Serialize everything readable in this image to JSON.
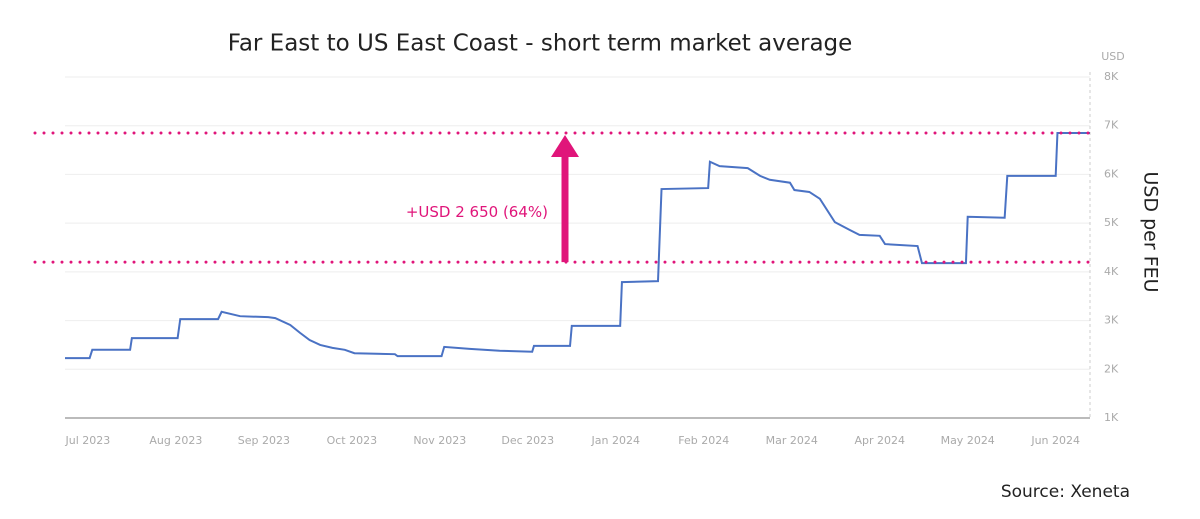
{
  "chart_data": {
    "type": "line",
    "title": "Far East to US East Coast - short term market average",
    "y_unit": "USD",
    "y_axis_label": "USD per FEU",
    "source": "Source: Xeneta",
    "annotation": "+USD 2 650 (64%)",
    "reference_lines": [
      {
        "value": 6850
      },
      {
        "value": 4200
      }
    ],
    "reference_color": "#e0157a",
    "grid": true,
    "xlim": [
      -0.26,
      11.39
    ],
    "xticks": [
      {
        "value": 0,
        "label": "Jul 2023"
      },
      {
        "value": 1,
        "label": "Aug 2023"
      },
      {
        "value": 2,
        "label": "Sep 2023"
      },
      {
        "value": 3,
        "label": "Oct 2023"
      },
      {
        "value": 4,
        "label": "Nov 2023"
      },
      {
        "value": 5,
        "label": "Dec 2023"
      },
      {
        "value": 6,
        "label": "Jan 2024"
      },
      {
        "value": 7,
        "label": "Feb 2024"
      },
      {
        "value": 8,
        "label": "Mar 2024"
      },
      {
        "value": 9,
        "label": "Apr 2024"
      },
      {
        "value": 10,
        "label": "May 2024"
      },
      {
        "value": 11,
        "label": "Jun 2024"
      }
    ],
    "ylim": [
      1000,
      8000
    ],
    "yticks": [
      {
        "value": 1000,
        "label": "1K"
      },
      {
        "value": 2000,
        "label": "2K"
      },
      {
        "value": 3000,
        "label": "3K"
      },
      {
        "value": 4000,
        "label": "4K"
      },
      {
        "value": 5000,
        "label": "5K"
      },
      {
        "value": 6000,
        "label": "6K"
      },
      {
        "value": 7000,
        "label": "7K"
      },
      {
        "value": 8000,
        "label": "8K"
      }
    ],
    "x": [
      -0.26,
      0.02,
      0.05,
      0.48,
      0.5,
      1.02,
      1.05,
      1.48,
      1.52,
      1.73,
      2.05,
      2.13,
      2.3,
      2.41,
      2.52,
      2.64,
      2.78,
      2.92,
      3.03,
      3.49,
      3.52,
      4.02,
      4.05,
      4.34,
      4.68,
      5.05,
      5.07,
      5.48,
      5.5,
      6.05,
      6.07,
      6.48,
      6.52,
      7.05,
      7.07,
      7.18,
      7.5,
      7.64,
      7.75,
      7.98,
      8.03,
      8.2,
      8.32,
      8.49,
      8.66,
      8.77,
      9,
      9.06,
      9.43,
      9.48,
      9.98,
      10,
      10.42,
      10.45,
      11,
      11.02,
      11.39
    ],
    "series": [
      {
        "color": "#4a72c4",
        "values": [
          2230,
          2230,
          2400,
          2400,
          2640,
          2640,
          3030,
          3030,
          3180,
          3090,
          3070,
          3050,
          2910,
          2750,
          2600,
          2500,
          2440,
          2400,
          2330,
          2310,
          2270,
          2270,
          2460,
          2420,
          2380,
          2360,
          2480,
          2480,
          2890,
          2890,
          3790,
          3810,
          5700,
          5720,
          6260,
          6170,
          6130,
          5970,
          5890,
          5830,
          5680,
          5640,
          5500,
          5020,
          4860,
          4760,
          4740,
          4570,
          4530,
          4180,
          4180,
          5130,
          5110,
          5970,
          5970,
          6850,
          6850
        ]
      }
    ]
  }
}
